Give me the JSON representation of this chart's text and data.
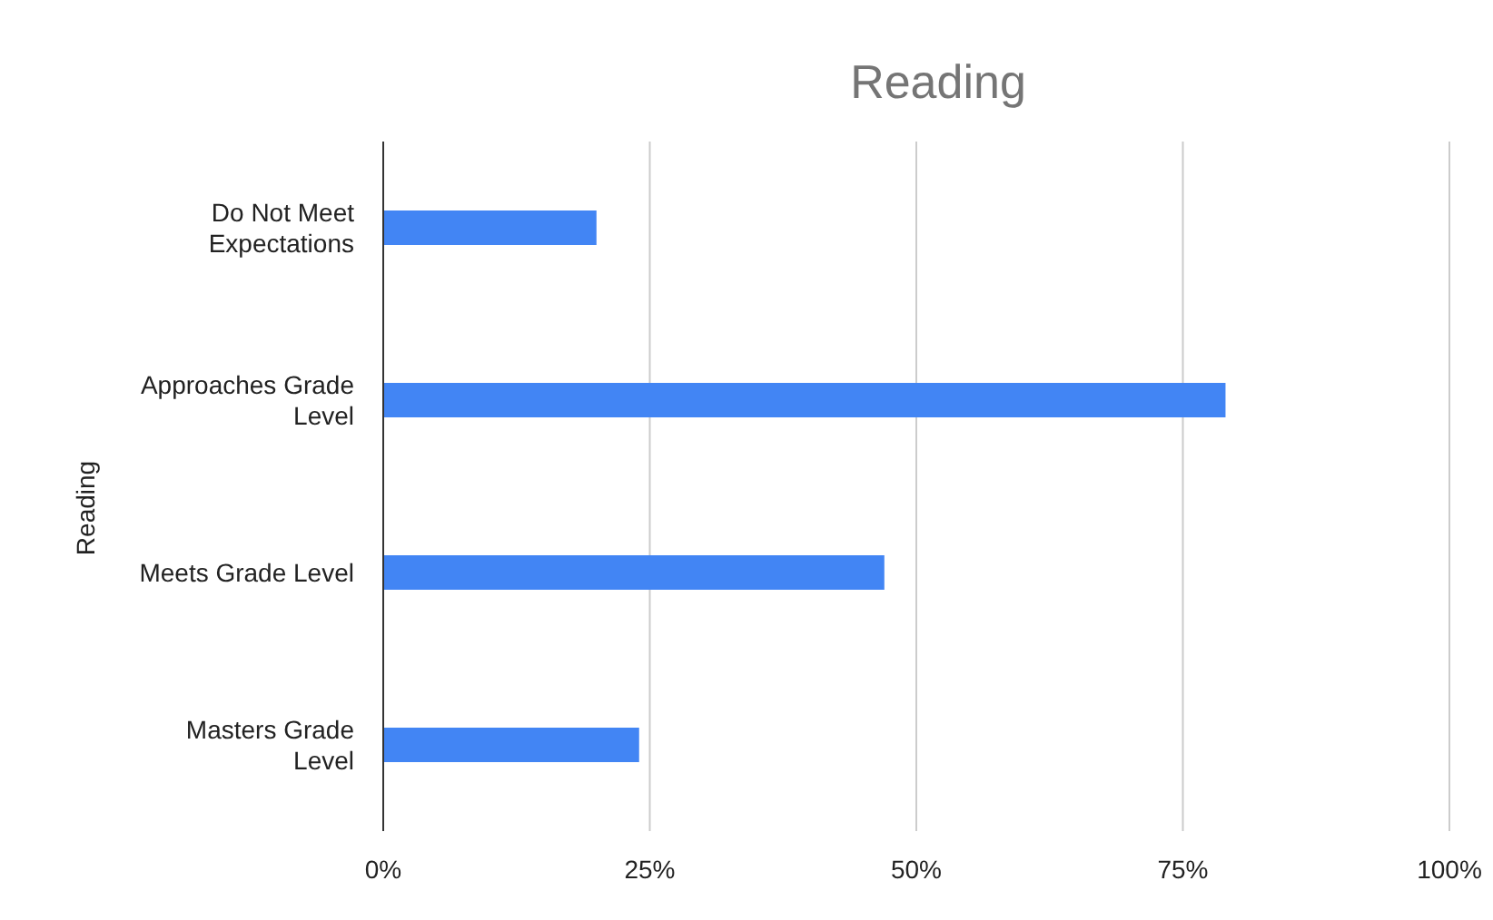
{
  "chart_data": {
    "type": "bar",
    "orientation": "horizontal",
    "title": "Reading",
    "ylabel": "Reading",
    "categories": [
      "Do Not Meet Expectations",
      "Approaches Grade Level",
      "Meets Grade Level",
      "Masters Grade Level"
    ],
    "values": [
      20,
      79,
      47,
      24
    ],
    "color": "#4285f4",
    "xlim": [
      0,
      100
    ],
    "xticks": [
      {
        "value": 0,
        "label": "0%"
      },
      {
        "value": 25,
        "label": "25%"
      },
      {
        "value": 50,
        "label": "50%"
      },
      {
        "value": 75,
        "label": "75%"
      },
      {
        "value": 100,
        "label": "100%"
      }
    ],
    "grid": "x",
    "legend": false
  }
}
